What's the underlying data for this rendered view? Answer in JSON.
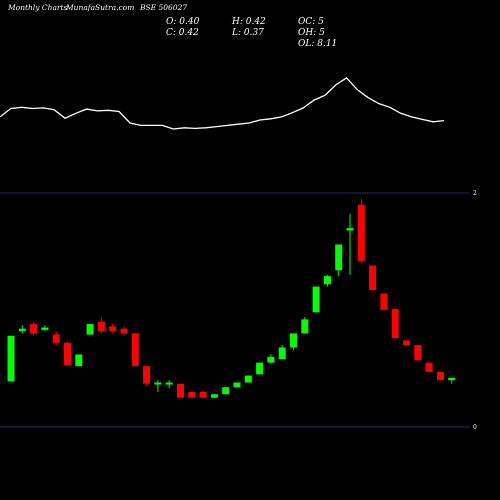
{
  "header": {
    "left": "Monthly Charts",
    "site": "MunafaSutra.com",
    "symbol": "BSE 506027"
  },
  "ohlc": {
    "open": "O: 0.40",
    "high": "H: 0.42",
    "oc": "OC: 5",
    "close": "C: 0.42",
    "low": "L: 0.37",
    "oh": "OH: 5",
    "ol": "OL: 8.11"
  },
  "colors": {
    "background": "#000000",
    "up": "#00ff00",
    "down": "#ff0000",
    "line": "#ffffff",
    "gridline": "#1a2a6b"
  },
  "chart_data": [
    {
      "type": "line",
      "description_series": "moving average (upper panel)",
      "values": [
        0.8,
        0.94,
        0.96,
        0.94,
        0.95,
        0.92,
        0.78,
        0.86,
        0.93,
        0.9,
        0.91,
        0.89,
        0.7,
        0.66,
        0.66,
        0.66,
        0.6,
        0.62,
        0.61,
        0.62,
        0.64,
        0.66,
        0.68,
        0.7,
        0.75,
        0.77,
        0.8,
        0.87,
        0.95,
        1.08,
        1.16,
        1.33,
        1.45,
        1.25,
        1.12,
        1.02,
        0.96,
        0.86,
        0.8,
        0.76,
        0.72,
        0.74
      ]
    },
    {
      "type": "candlestick",
      "ylim": [
        0,
        2
      ],
      "y_ticks": [
        "2",
        "0"
      ],
      "candles": [
        {
          "o": 0.39,
          "h": 0.78,
          "l": 0.39,
          "c": 0.78
        },
        {
          "o": 0.82,
          "h": 0.87,
          "l": 0.8,
          "c": 0.84
        },
        {
          "o": 0.88,
          "h": 0.9,
          "l": 0.78,
          "c": 0.8
        },
        {
          "o": 0.83,
          "h": 0.87,
          "l": 0.82,
          "c": 0.85
        },
        {
          "o": 0.79,
          "h": 0.82,
          "l": 0.7,
          "c": 0.72
        },
        {
          "o": 0.72,
          "h": 0.73,
          "l": 0.53,
          "c": 0.53
        },
        {
          "o": 0.52,
          "h": 0.62,
          "l": 0.52,
          "c": 0.62
        },
        {
          "o": 0.79,
          "h": 0.88,
          "l": 0.79,
          "c": 0.88
        },
        {
          "o": 0.9,
          "h": 0.93,
          "l": 0.8,
          "c": 0.82
        },
        {
          "o": 0.86,
          "h": 0.88,
          "l": 0.8,
          "c": 0.82
        },
        {
          "o": 0.84,
          "h": 0.86,
          "l": 0.78,
          "c": 0.8
        },
        {
          "o": 0.8,
          "h": 0.8,
          "l": 0.52,
          "c": 0.52
        },
        {
          "o": 0.52,
          "h": 0.52,
          "l": 0.35,
          "c": 0.37
        },
        {
          "o": 0.37,
          "h": 0.4,
          "l": 0.3,
          "c": 0.38
        },
        {
          "o": 0.38,
          "h": 0.4,
          "l": 0.33,
          "c": 0.38
        },
        {
          "o": 0.37,
          "h": 0.37,
          "l": 0.25,
          "c": 0.25
        },
        {
          "o": 0.3,
          "h": 0.3,
          "l": 0.25,
          "c": 0.25
        },
        {
          "o": 0.3,
          "h": 0.31,
          "l": 0.25,
          "c": 0.25
        },
        {
          "o": 0.25,
          "h": 0.28,
          "l": 0.25,
          "c": 0.28
        },
        {
          "o": 0.28,
          "h": 0.34,
          "l": 0.28,
          "c": 0.34
        },
        {
          "o": 0.34,
          "h": 0.38,
          "l": 0.34,
          "c": 0.38
        },
        {
          "o": 0.38,
          "h": 0.44,
          "l": 0.38,
          "c": 0.44
        },
        {
          "o": 0.45,
          "h": 0.55,
          "l": 0.45,
          "c": 0.55
        },
        {
          "o": 0.55,
          "h": 0.62,
          "l": 0.54,
          "c": 0.6
        },
        {
          "o": 0.58,
          "h": 0.7,
          "l": 0.58,
          "c": 0.68
        },
        {
          "o": 0.68,
          "h": 0.8,
          "l": 0.66,
          "c": 0.8
        },
        {
          "o": 0.8,
          "h": 0.94,
          "l": 0.8,
          "c": 0.92
        },
        {
          "o": 0.98,
          "h": 1.2,
          "l": 0.98,
          "c": 1.2
        },
        {
          "o": 1.22,
          "h": 1.3,
          "l": 1.2,
          "c": 1.29
        },
        {
          "o": 1.34,
          "h": 1.56,
          "l": 1.29,
          "c": 1.56
        },
        {
          "o": 1.68,
          "h": 1.82,
          "l": 1.3,
          "c": 1.7
        },
        {
          "o": 1.9,
          "h": 1.95,
          "l": 1.4,
          "c": 1.42
        },
        {
          "o": 1.38,
          "h": 1.38,
          "l": 1.17,
          "c": 1.17
        },
        {
          "o": 1.14,
          "h": 1.14,
          "l": 1.0,
          "c": 1.0
        },
        {
          "o": 1.01,
          "h": 1.01,
          "l": 0.76,
          "c": 0.76
        },
        {
          "o": 0.74,
          "h": 0.74,
          "l": 0.7,
          "c": 0.7
        },
        {
          "o": 0.7,
          "h": 0.7,
          "l": 0.57,
          "c": 0.57
        },
        {
          "o": 0.55,
          "h": 0.55,
          "l": 0.47,
          "c": 0.47
        },
        {
          "o": 0.47,
          "h": 0.47,
          "l": 0.4,
          "c": 0.4
        },
        {
          "o": 0.4,
          "h": 0.42,
          "l": 0.37,
          "c": 0.42
        }
      ]
    }
  ]
}
